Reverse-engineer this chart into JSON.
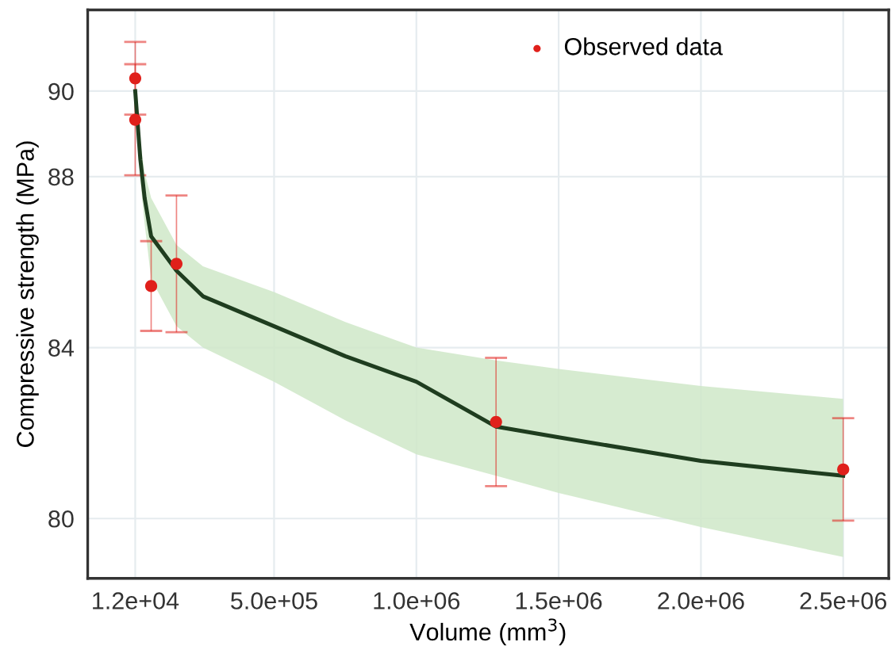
{
  "chart_data": {
    "type": "scatter",
    "xlabel": "Volume (mm$^{3}$)",
    "ylabel": "Compressive strength (MPa)",
    "xlim": [
      -155000,
      2660000
    ],
    "ylim": [
      78.6,
      91.9
    ],
    "xticks": [
      {
        "value": 12000,
        "label": "1.2e+04"
      },
      {
        "value": 500000,
        "label": "5.0e+05"
      },
      {
        "value": 1000000,
        "label": "1.0e+06"
      },
      {
        "value": 1500000,
        "label": "1.5e+06"
      },
      {
        "value": 2000000,
        "label": "2.0e+06"
      },
      {
        "value": 2500000,
        "label": "2.5e+06"
      }
    ],
    "yticks": [
      80,
      84,
      88,
      90
    ],
    "grid": true,
    "legend": "top right",
    "series": [
      {
        "type": "line",
        "marker": "none",
        "color": "#1f3d1f",
        "x": [
          12000,
          30000,
          45000,
          68000,
          157000,
          250000,
          500000,
          750000,
          1000000,
          1280000,
          1500000,
          2000000,
          2500000
        ],
        "values": [
          90.0,
          88.4,
          87.5,
          86.6,
          85.8,
          85.2,
          84.5,
          83.8,
          83.2,
          82.15,
          81.9,
          81.35,
          81.0
        ],
        "lower": [
          90.0,
          87.9,
          86.9,
          85.6,
          84.5,
          84.0,
          83.2,
          82.3,
          81.5,
          81.0,
          80.6,
          79.8,
          79.1
        ],
        "upper": [
          90.0,
          88.8,
          88.1,
          87.5,
          86.4,
          85.9,
          85.3,
          84.6,
          84.0,
          83.7,
          83.5,
          83.1,
          82.8
        ]
      },
      {
        "name": "Observed data",
        "marker": "circle",
        "color": "#e0201b",
        "x": [
          12000,
          12000,
          68000,
          157000,
          1280000,
          2500000
        ],
        "values": [
          90.3,
          89.33,
          85.44,
          85.96,
          82.26,
          81.15
        ],
        "errors": [
          0.85,
          1.3,
          1.05,
          1.6,
          1.5,
          1.2
        ]
      }
    ]
  }
}
